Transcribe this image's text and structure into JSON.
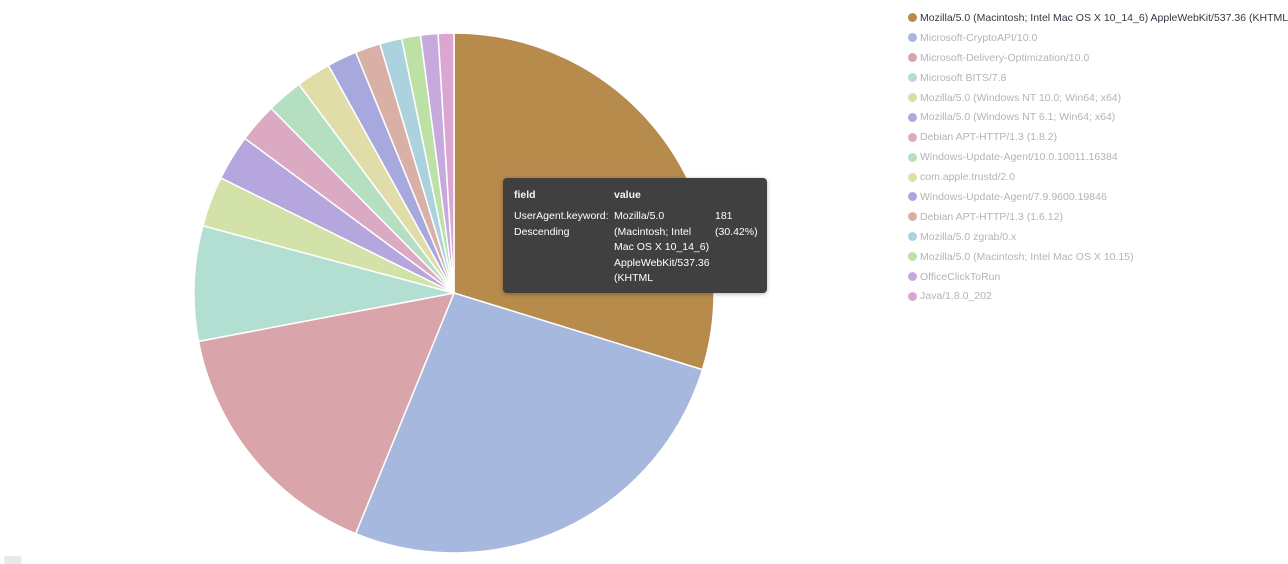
{
  "chart_data": {
    "type": "pie",
    "slices": [
      {
        "label": "Mozilla/5.0 (Macintosh; Intel Mac OS X 10_14_6) AppleWebKit/537.36 (KHTML",
        "value": 30.42,
        "color": "#b68b4c"
      },
      {
        "label": "Microsoft-CryptoAPI/10.0",
        "value": 27.0,
        "color": "#a6b8dd"
      },
      {
        "label": "Microsoft-Delivery-Optimization/10.0",
        "value": 16.2,
        "color": "#d9a5aa"
      },
      {
        "label": "Microsoft BITS/7.8",
        "value": 7.3,
        "color": "#b3ded2"
      },
      {
        "label": "Mozilla/5.0 (Windows NT 10.0; Win64; x64)",
        "value": 3.2,
        "color": "#d3e2a9"
      },
      {
        "label": "Mozilla/5.0 (Windows NT 6.1; Win64; x64)",
        "value": 2.9,
        "color": "#b5a7de"
      },
      {
        "label": "Debian APT-HTTP/1.3 (1.8.2)",
        "value": 2.5,
        "color": "#dca9c3"
      },
      {
        "label": "Windows-Update-Agent/10.0.10011.16384",
        "value": 2.3,
        "color": "#b4e0c1"
      },
      {
        "label": "com.apple.trustd/2.0",
        "value": 2.2,
        "color": "#e0dda9"
      },
      {
        "label": "Windows-Update-Agent/7.9.9600.19846",
        "value": 1.9,
        "color": "#a6a8de"
      },
      {
        "label": "Debian APT-HTTP/1.3 (1.6.12)",
        "value": 1.6,
        "color": "#d9b0a6"
      },
      {
        "label": "Mozilla/5.0 zgrab/0.x",
        "value": 1.4,
        "color": "#acd3dd"
      },
      {
        "label": "Mozilla/5.0 (Macintosh; Intel Mac OS X 10.15)",
        "value": 1.2,
        "color": "#bce0a5"
      },
      {
        "label": "OfficeClickToRun",
        "value": 1.1,
        "color": "#c8a9de"
      },
      {
        "label": "Java/1.8.0_202",
        "value": 1.0,
        "color": "#dca6d3"
      }
    ]
  },
  "legend": [
    {
      "label": "Mozilla/5.0 (Macintosh; Intel Mac OS X 10_14_6) AppleWebKit/537.36 (KHTML",
      "color": "#b68b4c"
    },
    {
      "label": "Microsoft-CryptoAPI/10.0",
      "color": "#a6b8dd"
    },
    {
      "label": "Microsoft-Delivery-Optimization/10.0",
      "color": "#d9a5aa"
    },
    {
      "label": "Microsoft BITS/7.8",
      "color": "#b3ded2"
    },
    {
      "label": "Mozilla/5.0 (Windows NT 10.0; Win64; x64)",
      "color": "#d3e2a9"
    },
    {
      "label": "Mozilla/5.0 (Windows NT 6.1; Win64; x64)",
      "color": "#b5a7de"
    },
    {
      "label": "Debian APT-HTTP/1.3 (1.8.2)",
      "color": "#dca9c3"
    },
    {
      "label": "Windows-Update-Agent/10.0.10011.16384",
      "color": "#b4e0c1"
    },
    {
      "label": "com.apple.trustd/2.0",
      "color": "#e0dda9"
    },
    {
      "label": "Windows-Update-Agent/7.9.9600.19846",
      "color": "#a6a8de"
    },
    {
      "label": "Debian APT-HTTP/1.3 (1.6.12)",
      "color": "#d9b0a6"
    },
    {
      "label": "Mozilla/5.0 zgrab/0.x",
      "color": "#acd3dd"
    },
    {
      "label": "Mozilla/5.0 (Macintosh; Intel Mac OS X 10.15)",
      "color": "#bce0a5"
    },
    {
      "label": "OfficeClickToRun",
      "color": "#c8a9de"
    },
    {
      "label": "Java/1.8.0_202",
      "color": "#dca6d3"
    }
  ],
  "tooltip": {
    "header_field": "field",
    "header_value": "value",
    "field_line1": "UserAgent.keyword:",
    "field_line2": "Descending",
    "value_lines": [
      "Mozilla/5.0",
      "(Macintosh; Intel",
      "Mac OS X 10_14_6)",
      "AppleWebKit/537.36",
      "(KHTML"
    ],
    "count": "181",
    "percent": "(30.42%)"
  }
}
